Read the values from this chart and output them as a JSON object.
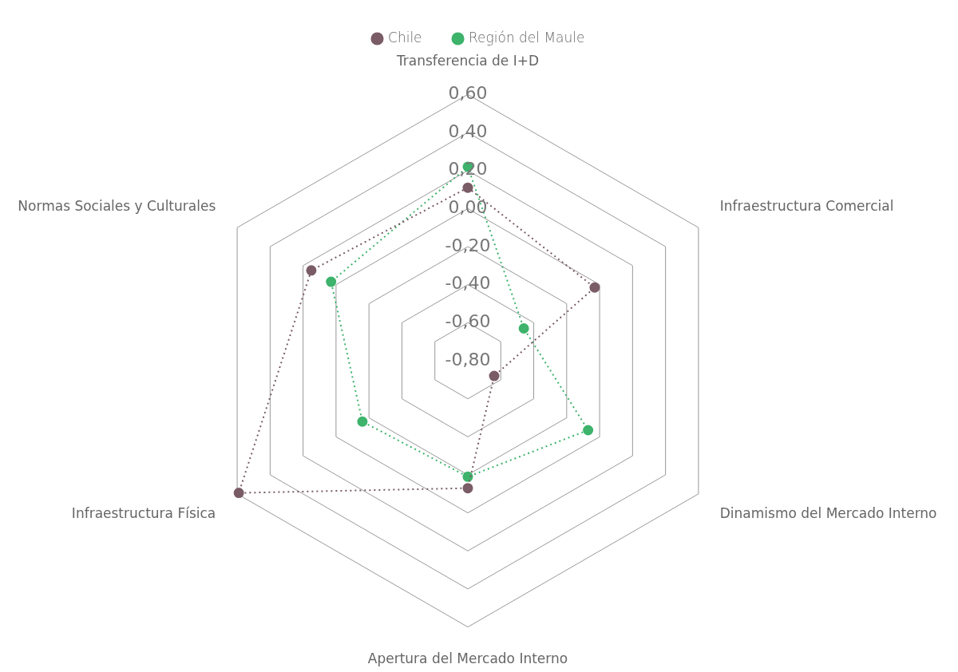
{
  "chart_data": {
    "type": "radar",
    "categories": [
      "Transferencia de I+D",
      "Infraestructura Comercial",
      "Dinamismo del Mercado Interno",
      "Apertura del Mercado Interno",
      "Infraestructura Física",
      "Normas Sociales y Culturales"
    ],
    "ylim": [
      -0.8,
      0.6
    ],
    "yticks": [
      {
        "value": -0.8,
        "label": "-0,80"
      },
      {
        "value": -0.6,
        "label": "-0,60"
      },
      {
        "value": -0.4,
        "label": "-0,40"
      },
      {
        "value": -0.2,
        "label": "-0,20"
      },
      {
        "value": 0,
        "label": "0,00"
      },
      {
        "value": 0.2,
        "label": "0,20"
      },
      {
        "value": 0.4,
        "label": "0,40"
      },
      {
        "value": 0.6,
        "label": "0,60"
      }
    ],
    "grid": true,
    "legend": "top",
    "marker": "circle",
    "line_style": "dotted",
    "series": [
      {
        "name": "Chile",
        "color": "#7a5c66",
        "values": [
          0.11,
          -0.03,
          -0.64,
          -0.13,
          0.59,
          0.15
        ]
      },
      {
        "name": "Región del Maule",
        "color": "#3db36b",
        "values": [
          0.22,
          -0.46,
          -0.07,
          -0.19,
          -0.16,
          0.03
        ]
      }
    ]
  }
}
